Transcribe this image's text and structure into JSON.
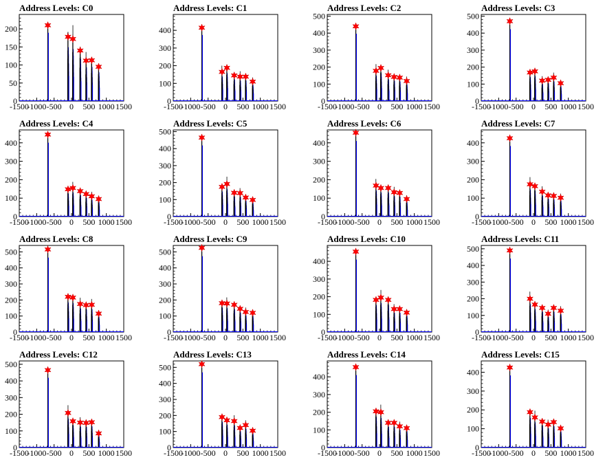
{
  "chart_data": [
    {
      "type": "histogram",
      "title": "Address Levels: C0",
      "xlim": [
        -1500,
        1500
      ],
      "ylim": [
        0,
        240
      ],
      "yticks": [
        50,
        100,
        150,
        200
      ],
      "xticks": [
        -1500,
        -1000,
        -500,
        0,
        500,
        1000,
        1500
      ],
      "peaks": [
        {
          "x": -680,
          "y": 210
        },
        {
          "x": -100,
          "y": 178
        },
        {
          "x": 40,
          "y": 172
        },
        {
          "x": 250,
          "y": 140
        },
        {
          "x": 420,
          "y": 112
        },
        {
          "x": 580,
          "y": 113
        },
        {
          "x": 780,
          "y": 95
        }
      ]
    },
    {
      "type": "histogram",
      "title": "Address Levels: C1",
      "xlim": [
        -1500,
        1500
      ],
      "ylim": [
        0,
        490
      ],
      "yticks": [
        100,
        200,
        300,
        400
      ],
      "xticks": [
        -1500,
        -1000,
        -500,
        0,
        500,
        1000,
        1500
      ],
      "peaks": [
        {
          "x": -680,
          "y": 415
        },
        {
          "x": -100,
          "y": 165
        },
        {
          "x": 40,
          "y": 188
        },
        {
          "x": 250,
          "y": 145
        },
        {
          "x": 420,
          "y": 138
        },
        {
          "x": 580,
          "y": 138
        },
        {
          "x": 780,
          "y": 110
        }
      ]
    },
    {
      "type": "histogram",
      "title": "Address Levels: C2",
      "xlim": [
        -1500,
        1500
      ],
      "ylim": [
        0,
        510
      ],
      "yticks": [
        100,
        200,
        300,
        400,
        500
      ],
      "xticks": [
        -1500,
        -1000,
        -500,
        0,
        500,
        1000,
        1500
      ],
      "peaks": [
        {
          "x": -680,
          "y": 440
        },
        {
          "x": -100,
          "y": 178
        },
        {
          "x": 40,
          "y": 195
        },
        {
          "x": 250,
          "y": 152
        },
        {
          "x": 420,
          "y": 142
        },
        {
          "x": 580,
          "y": 138
        },
        {
          "x": 780,
          "y": 118
        }
      ]
    },
    {
      "type": "histogram",
      "title": "Address Levels: C3",
      "xlim": [
        -1500,
        1500
      ],
      "ylim": [
        0,
        510
      ],
      "yticks": [
        100,
        200,
        300,
        400,
        500
      ],
      "xticks": [
        -1500,
        -1000,
        -500,
        0,
        500,
        1000,
        1500
      ],
      "peaks": [
        {
          "x": -680,
          "y": 470
        },
        {
          "x": -100,
          "y": 168
        },
        {
          "x": 40,
          "y": 175
        },
        {
          "x": 250,
          "y": 120
        },
        {
          "x": 420,
          "y": 125
        },
        {
          "x": 580,
          "y": 138
        },
        {
          "x": 780,
          "y": 105
        }
      ]
    },
    {
      "type": "histogram",
      "title": "Address Levels: C4",
      "xlim": [
        -1500,
        1500
      ],
      "ylim": [
        0,
        470
      ],
      "yticks": [
        100,
        200,
        300,
        400
      ],
      "xticks": [
        -1500,
        -1000,
        -500,
        0,
        500,
        1000,
        1500
      ],
      "peaks": [
        {
          "x": -680,
          "y": 445
        },
        {
          "x": -100,
          "y": 148
        },
        {
          "x": 40,
          "y": 155
        },
        {
          "x": 250,
          "y": 138
        },
        {
          "x": 420,
          "y": 122
        },
        {
          "x": 580,
          "y": 110
        },
        {
          "x": 780,
          "y": 95
        }
      ]
    },
    {
      "type": "histogram",
      "title": "Address Levels: C5",
      "xlim": [
        -1500,
        1500
      ],
      "ylim": [
        0,
        510
      ],
      "yticks": [
        100,
        200,
        300,
        400,
        500
      ],
      "xticks": [
        -1500,
        -1000,
        -500,
        0,
        500,
        1000,
        1500
      ],
      "peaks": [
        {
          "x": -680,
          "y": 465
        },
        {
          "x": -100,
          "y": 175
        },
        {
          "x": 40,
          "y": 192
        },
        {
          "x": 250,
          "y": 140
        },
        {
          "x": 420,
          "y": 138
        },
        {
          "x": 580,
          "y": 112
        },
        {
          "x": 780,
          "y": 98
        }
      ]
    },
    {
      "type": "histogram",
      "title": "Address Levels: C6",
      "xlim": [
        -1500,
        1500
      ],
      "ylim": [
        0,
        470
      ],
      "yticks": [
        100,
        200,
        300,
        400
      ],
      "xticks": [
        -1500,
        -1000,
        -500,
        0,
        500,
        1000,
        1500
      ],
      "peaks": [
        {
          "x": -680,
          "y": 455
        },
        {
          "x": -100,
          "y": 168
        },
        {
          "x": 40,
          "y": 155
        },
        {
          "x": 250,
          "y": 155
        },
        {
          "x": 420,
          "y": 132
        },
        {
          "x": 580,
          "y": 128
        },
        {
          "x": 780,
          "y": 95
        }
      ]
    },
    {
      "type": "histogram",
      "title": "Address Levels: C7",
      "xlim": [
        -1500,
        1500
      ],
      "ylim": [
        0,
        470
      ],
      "yticks": [
        100,
        200,
        300,
        400
      ],
      "xticks": [
        -1500,
        -1000,
        -500,
        0,
        500,
        1000,
        1500
      ],
      "peaks": [
        {
          "x": -680,
          "y": 425
        },
        {
          "x": -100,
          "y": 175
        },
        {
          "x": 40,
          "y": 165
        },
        {
          "x": 250,
          "y": 135
        },
        {
          "x": 420,
          "y": 115
        },
        {
          "x": 580,
          "y": 112
        },
        {
          "x": 780,
          "y": 102
        }
      ]
    },
    {
      "type": "histogram",
      "title": "Address Levels: C8",
      "xlim": [
        -1500,
        1500
      ],
      "ylim": [
        0,
        540
      ],
      "yticks": [
        100,
        200,
        300,
        400,
        500
      ],
      "xticks": [
        -1500,
        -1000,
        -500,
        0,
        500,
        1000,
        1500
      ],
      "peaks": [
        {
          "x": -680,
          "y": 515
        },
        {
          "x": -100,
          "y": 220
        },
        {
          "x": 40,
          "y": 215
        },
        {
          "x": 250,
          "y": 175
        },
        {
          "x": 420,
          "y": 168
        },
        {
          "x": 580,
          "y": 170
        },
        {
          "x": 780,
          "y": 115
        }
      ]
    },
    {
      "type": "histogram",
      "title": "Address Levels: C9",
      "xlim": [
        -1500,
        1500
      ],
      "ylim": [
        0,
        540
      ],
      "yticks": [
        100,
        200,
        300,
        400,
        500
      ],
      "xticks": [
        -1500,
        -1000,
        -500,
        0,
        500,
        1000,
        1500
      ],
      "peaks": [
        {
          "x": -680,
          "y": 525
        },
        {
          "x": -100,
          "y": 180
        },
        {
          "x": 40,
          "y": 178
        },
        {
          "x": 250,
          "y": 170
        },
        {
          "x": 420,
          "y": 145
        },
        {
          "x": 580,
          "y": 125
        },
        {
          "x": 780,
          "y": 120
        }
      ]
    },
    {
      "type": "histogram",
      "title": "Address Levels: C10",
      "xlim": [
        -1500,
        1500
      ],
      "ylim": [
        0,
        490
      ],
      "yticks": [
        100,
        200,
        300,
        400
      ],
      "xticks": [
        -1500,
        -1000,
        -500,
        0,
        500,
        1000,
        1500
      ],
      "peaks": [
        {
          "x": -680,
          "y": 455
        },
        {
          "x": -100,
          "y": 182
        },
        {
          "x": 40,
          "y": 195
        },
        {
          "x": 250,
          "y": 182
        },
        {
          "x": 420,
          "y": 130
        },
        {
          "x": 580,
          "y": 130
        },
        {
          "x": 780,
          "y": 110
        }
      ]
    },
    {
      "type": "histogram",
      "title": "Address Levels: C11",
      "xlim": [
        -1500,
        1500
      ],
      "ylim": [
        0,
        520
      ],
      "yticks": [
        100,
        200,
        300,
        400,
        500
      ],
      "xticks": [
        -1500,
        -1000,
        -500,
        0,
        500,
        1000,
        1500
      ],
      "peaks": [
        {
          "x": -680,
          "y": 490
        },
        {
          "x": -100,
          "y": 200
        },
        {
          "x": 40,
          "y": 165
        },
        {
          "x": 250,
          "y": 145
        },
        {
          "x": 420,
          "y": 110
        },
        {
          "x": 580,
          "y": 145
        },
        {
          "x": 780,
          "y": 128
        }
      ]
    },
    {
      "type": "histogram",
      "title": "Address Levels: C12",
      "xlim": [
        -1500,
        1500
      ],
      "ylim": [
        0,
        520
      ],
      "yticks": [
        100,
        200,
        300,
        400,
        500
      ],
      "xticks": [
        -1500,
        -1000,
        -500,
        0,
        500,
        1000,
        1500
      ],
      "peaks": [
        {
          "x": -680,
          "y": 465
        },
        {
          "x": -100,
          "y": 208
        },
        {
          "x": 40,
          "y": 158
        },
        {
          "x": 250,
          "y": 150
        },
        {
          "x": 420,
          "y": 148
        },
        {
          "x": 580,
          "y": 152
        },
        {
          "x": 780,
          "y": 85
        }
      ]
    },
    {
      "type": "histogram",
      "title": "Address Levels: C13",
      "xlim": [
        -1500,
        1500
      ],
      "ylim": [
        0,
        540
      ],
      "yticks": [
        100,
        200,
        300,
        400,
        500
      ],
      "xticks": [
        -1500,
        -1000,
        -500,
        0,
        500,
        1000,
        1500
      ],
      "peaks": [
        {
          "x": -680,
          "y": 520
        },
        {
          "x": -100,
          "y": 190
        },
        {
          "x": 40,
          "y": 170
        },
        {
          "x": 250,
          "y": 165
        },
        {
          "x": 420,
          "y": 122
        },
        {
          "x": 580,
          "y": 140
        },
        {
          "x": 780,
          "y": 105
        }
      ]
    },
    {
      "type": "histogram",
      "title": "Address Levels: C14",
      "xlim": [
        -1500,
        1500
      ],
      "ylim": [
        0,
        490
      ],
      "yticks": [
        100,
        200,
        300,
        400
      ],
      "xticks": [
        -1500,
        -1000,
        -500,
        0,
        500,
        1000,
        1500
      ],
      "peaks": [
        {
          "x": -680,
          "y": 455
        },
        {
          "x": -100,
          "y": 205
        },
        {
          "x": 40,
          "y": 200
        },
        {
          "x": 250,
          "y": 140
        },
        {
          "x": 420,
          "y": 140
        },
        {
          "x": 580,
          "y": 120
        },
        {
          "x": 780,
          "y": 110
        }
      ]
    },
    {
      "type": "histogram",
      "title": "Address Levels: C15",
      "xlim": [
        -1500,
        1500
      ],
      "ylim": [
        0,
        460
      ],
      "yticks": [
        100,
        200,
        300,
        400
      ],
      "xticks": [
        -1500,
        -1000,
        -500,
        0,
        500,
        1000,
        1500
      ],
      "peaks": [
        {
          "x": -680,
          "y": 425
        },
        {
          "x": -100,
          "y": 188
        },
        {
          "x": 40,
          "y": 160
        },
        {
          "x": 250,
          "y": 138
        },
        {
          "x": 420,
          "y": 122
        },
        {
          "x": 580,
          "y": 135
        },
        {
          "x": 780,
          "y": 102
        }
      ]
    }
  ],
  "colors": {
    "histogram_line": "#0000ff",
    "histogram_black": "#000000",
    "peak_marker": "#ff0000",
    "frame": "#000000"
  }
}
